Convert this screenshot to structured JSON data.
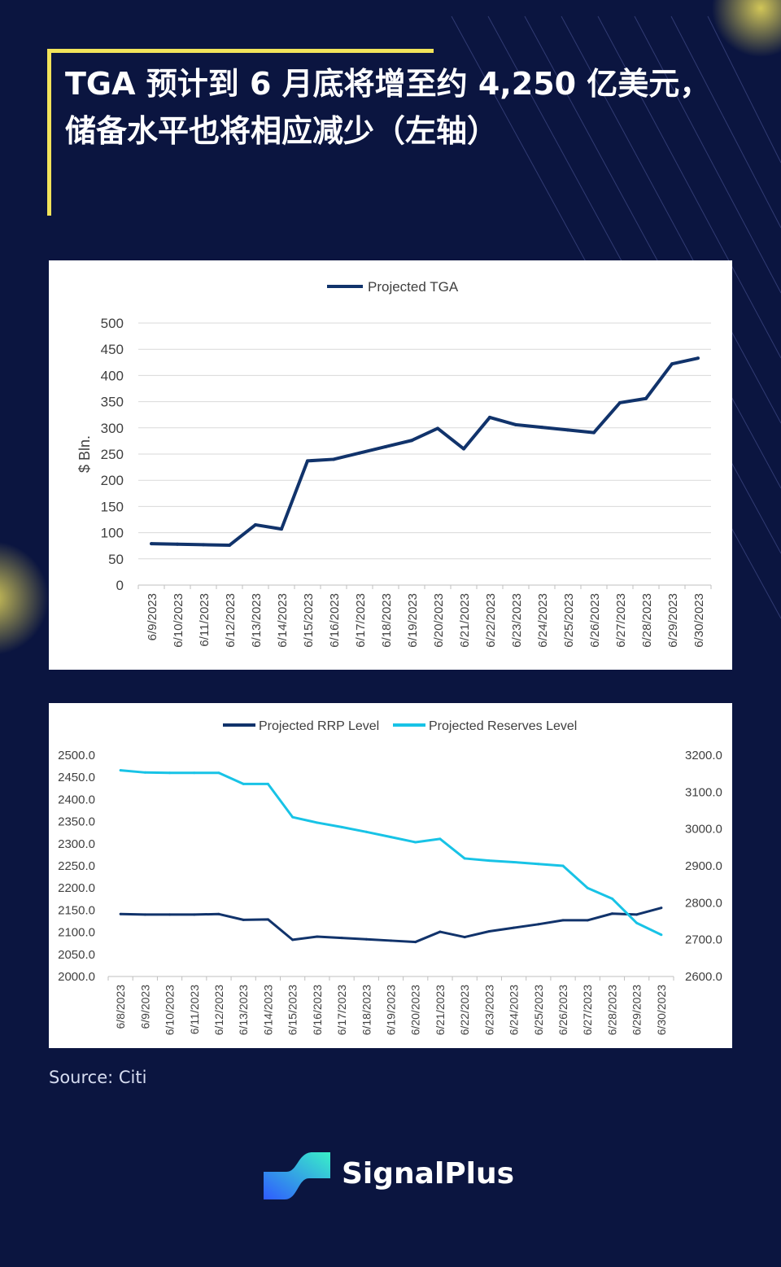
{
  "header": {
    "title": "TGA 预计到 6 月底将增至约 4,250 亿美元，储备水平也将相应减少（左轴）"
  },
  "source": "Source: Citi",
  "brand": {
    "name": "SignalPlus",
    "logo_icon": "signalplus-logo-icon"
  },
  "colors": {
    "background": "#0b1540",
    "accent": "#f2e35a",
    "navy_series": "#11336b",
    "cyan_series": "#18c3e6",
    "panel": "#ffffff"
  },
  "chart_data": [
    {
      "type": "line",
      "title": "",
      "legend": [
        "Projected TGA"
      ],
      "legend_position": "top",
      "ylabel": "$ Bln.",
      "xlabel": "",
      "ylim": [
        0,
        500
      ],
      "yticks": [
        0,
        50,
        100,
        150,
        200,
        250,
        300,
        350,
        400,
        450,
        500
      ],
      "grid": true,
      "x": [
        "6/9/2023",
        "6/10/2023",
        "6/11/2023",
        "6/12/2023",
        "6/13/2023",
        "6/14/2023",
        "6/15/2023",
        "6/16/2023",
        "6/17/2023",
        "6/18/2023",
        "6/19/2023",
        "6/20/2023",
        "6/21/2023",
        "6/22/2023",
        "6/23/2023",
        "6/24/2023",
        "6/25/2023",
        "6/26/2023",
        "6/27/2023",
        "6/28/2023",
        "6/29/2023",
        "6/30/2023"
      ],
      "series": [
        {
          "name": "Projected TGA",
          "color": "#11336b",
          "values": [
            79,
            78,
            77,
            76,
            115,
            107,
            237,
            240,
            252,
            264,
            276,
            299,
            260,
            320,
            306,
            301,
            296,
            291,
            348,
            356,
            422,
            433
          ]
        }
      ]
    },
    {
      "type": "line",
      "title": "",
      "legend": [
        "Projected RRP Level",
        "Projected Reserves Level"
      ],
      "legend_position": "top",
      "xlabel": "",
      "ylabel": "",
      "ylim_left": [
        2000,
        2500
      ],
      "ylim_right": [
        2600,
        3200
      ],
      "yticks_left": [
        "2000.0",
        "2050.0",
        "2100.0",
        "2150.0",
        "2200.0",
        "2250.0",
        "2300.0",
        "2350.0",
        "2400.0",
        "2450.0",
        "2500.0"
      ],
      "yticks_right": [
        "2600.0",
        "2700.0",
        "2800.0",
        "2900.0",
        "3000.0",
        "3100.0",
        "3200.0"
      ],
      "grid": false,
      "x": [
        "6/8/2023",
        "6/9/2023",
        "6/10/2023",
        "6/11/2023",
        "6/12/2023",
        "6/13/2023",
        "6/14/2023",
        "6/15/2023",
        "6/16/2023",
        "6/17/2023",
        "6/18/2023",
        "6/19/2023",
        "6/20/2023",
        "6/21/2023",
        "6/22/2023",
        "6/23/2023",
        "6/24/2023",
        "6/25/2023",
        "6/26/2023",
        "6/27/2023",
        "6/28/2023",
        "6/29/2023",
        "6/30/2023"
      ],
      "series": [
        {
          "name": "Projected RRP Level",
          "axis": "left",
          "color": "#11336b",
          "values": [
            2141,
            2140,
            2140,
            2140,
            2141,
            2128,
            2129,
            2083,
            2090,
            2087,
            2084,
            2081,
            2078,
            2101,
            2089,
            2102,
            2110,
            2118,
            2127,
            2127,
            2142,
            2140,
            2155
          ]
        },
        {
          "name": "Projected Reserves Level",
          "axis": "right",
          "color": "#18c3e6",
          "values": [
            3159,
            3153,
            3152,
            3152,
            3152,
            3122,
            3122,
            3032,
            3017,
            3005,
            2992,
            2978,
            2964,
            2973,
            2920,
            2914,
            2910,
            2905,
            2900,
            2840,
            2811,
            2745,
            2713
          ]
        }
      ]
    }
  ]
}
